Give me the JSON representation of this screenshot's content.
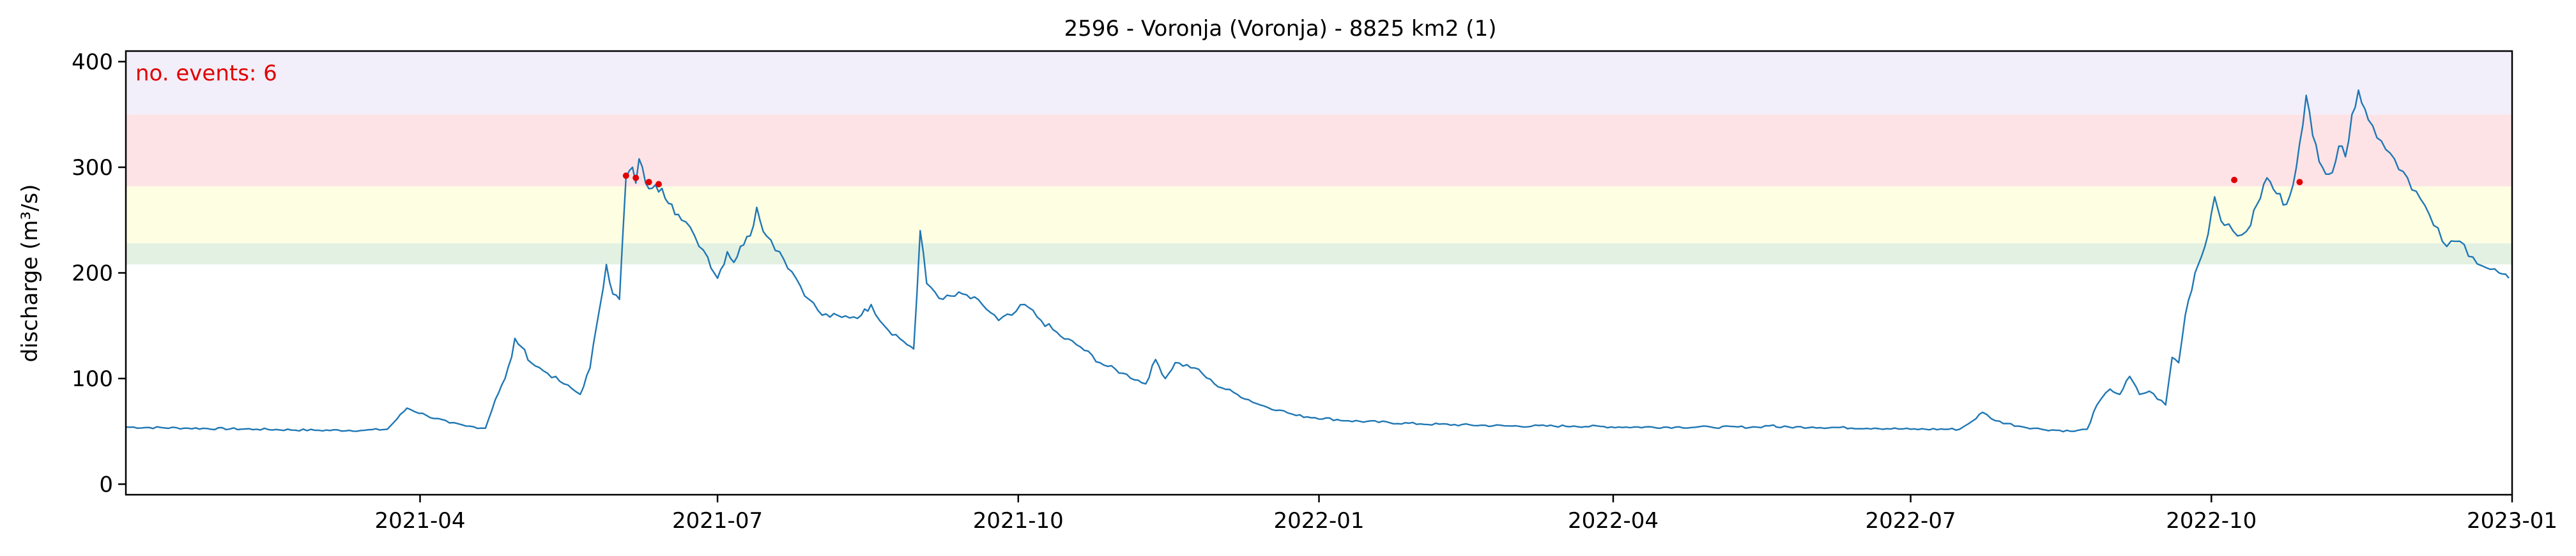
{
  "chart_data": {
    "type": "line",
    "title": "2596 - Voronja (Voronja) - 8825 km2 (1)",
    "xlabel": "",
    "ylabel": "discharge (m³/s)",
    "annotation": "no. events: 6",
    "xlim": [
      "2021-01-01",
      "2023-01-01"
    ],
    "ylim": [
      -10,
      410
    ],
    "yticks": [
      0,
      100,
      200,
      300,
      400
    ],
    "xticks": [
      {
        "date": "2021-04-01",
        "label": "2021-04"
      },
      {
        "date": "2021-07-01",
        "label": "2021-07"
      },
      {
        "date": "2021-10-01",
        "label": "2021-10"
      },
      {
        "date": "2022-01-01",
        "label": "2022-01"
      },
      {
        "date": "2022-04-01",
        "label": "2022-04"
      },
      {
        "date": "2022-07-01",
        "label": "2022-07"
      },
      {
        "date": "2022-10-01",
        "label": "2022-10"
      },
      {
        "date": "2023-01-01",
        "label": "2023-01"
      }
    ],
    "threshold_bands": [
      {
        "name": "band-green",
        "from": 208,
        "to": 228,
        "color": "#e3f1e3"
      },
      {
        "name": "band-yellow",
        "from": 228,
        "to": 282,
        "color": "#fefee2"
      },
      {
        "name": "band-red",
        "from": 282,
        "to": 350,
        "color": "#fee3e6"
      },
      {
        "name": "band-purple",
        "from": 350,
        "to": 410,
        "color": "#f2eefa"
      }
    ],
    "line_color": "#1f77b4",
    "event_color": "#e00000",
    "series": [
      {
        "name": "discharge",
        "points": [
          [
            "2021-01-01",
            54
          ],
          [
            "2021-01-20",
            53
          ],
          [
            "2021-02-10",
            52
          ],
          [
            "2021-03-01",
            51
          ],
          [
            "2021-03-15",
            51
          ],
          [
            "2021-03-22",
            52
          ],
          [
            "2021-03-25",
            62
          ],
          [
            "2021-03-28",
            72
          ],
          [
            "2021-04-03",
            65
          ],
          [
            "2021-04-10",
            58
          ],
          [
            "2021-04-15",
            55
          ],
          [
            "2021-04-21",
            53
          ],
          [
            "2021-04-24",
            80
          ],
          [
            "2021-04-27",
            100
          ],
          [
            "2021-04-29",
            120
          ],
          [
            "2021-04-30",
            138
          ],
          [
            "2021-05-02",
            130
          ],
          [
            "2021-05-05",
            115
          ],
          [
            "2021-05-10",
            105
          ],
          [
            "2021-05-15",
            95
          ],
          [
            "2021-05-20",
            85
          ],
          [
            "2021-05-23",
            110
          ],
          [
            "2021-05-25",
            150
          ],
          [
            "2021-05-28",
            208
          ],
          [
            "2021-05-30",
            180
          ],
          [
            "2021-06-01",
            175
          ],
          [
            "2021-06-03",
            290
          ],
          [
            "2021-06-05",
            300
          ],
          [
            "2021-06-06",
            285
          ],
          [
            "2021-06-07",
            308
          ],
          [
            "2021-06-09",
            285
          ],
          [
            "2021-06-11",
            280
          ],
          [
            "2021-06-14",
            280
          ],
          [
            "2021-06-17",
            265
          ],
          [
            "2021-06-20",
            250
          ],
          [
            "2021-06-24",
            235
          ],
          [
            "2021-06-28",
            215
          ],
          [
            "2021-07-01",
            195
          ],
          [
            "2021-07-04",
            220
          ],
          [
            "2021-07-06",
            210
          ],
          [
            "2021-07-08",
            225
          ],
          [
            "2021-07-11",
            235
          ],
          [
            "2021-07-13",
            262
          ],
          [
            "2021-07-16",
            235
          ],
          [
            "2021-07-20",
            220
          ],
          [
            "2021-07-25",
            195
          ],
          [
            "2021-07-29",
            175
          ],
          [
            "2021-08-02",
            160
          ],
          [
            "2021-08-08",
            158
          ],
          [
            "2021-08-14",
            160
          ],
          [
            "2021-08-17",
            170
          ],
          [
            "2021-08-21",
            150
          ],
          [
            "2021-08-27",
            135
          ],
          [
            "2021-08-30",
            128
          ],
          [
            "2021-08-31",
            180
          ],
          [
            "2021-09-01",
            240
          ],
          [
            "2021-09-03",
            190
          ],
          [
            "2021-09-08",
            175
          ],
          [
            "2021-09-14",
            180
          ],
          [
            "2021-09-20",
            170
          ],
          [
            "2021-09-25",
            155
          ],
          [
            "2021-09-29",
            160
          ],
          [
            "2021-10-03",
            170
          ],
          [
            "2021-10-08",
            155
          ],
          [
            "2021-10-14",
            140
          ],
          [
            "2021-10-20",
            130
          ],
          [
            "2021-10-26",
            115
          ],
          [
            "2021-11-02",
            105
          ],
          [
            "2021-11-09",
            95
          ],
          [
            "2021-11-12",
            118
          ],
          [
            "2021-11-15",
            100
          ],
          [
            "2021-11-18",
            115
          ],
          [
            "2021-11-24",
            110
          ],
          [
            "2021-11-30",
            95
          ],
          [
            "2021-12-07",
            85
          ],
          [
            "2021-12-14",
            75
          ],
          [
            "2021-12-20",
            70
          ],
          [
            "2021-12-25",
            65
          ],
          [
            "2022-01-10",
            60
          ],
          [
            "2022-02-01",
            57
          ],
          [
            "2022-03-01",
            55
          ],
          [
            "2022-03-20",
            55
          ],
          [
            "2022-04-05",
            54
          ],
          [
            "2022-04-20",
            54
          ],
          [
            "2022-05-01",
            54
          ],
          [
            "2022-05-15",
            54
          ],
          [
            "2022-05-20",
            56
          ],
          [
            "2022-05-21",
            54
          ],
          [
            "2022-06-01",
            54
          ],
          [
            "2022-06-20",
            53
          ],
          [
            "2022-07-01",
            52
          ],
          [
            "2022-07-16",
            52
          ],
          [
            "2022-07-20",
            60
          ],
          [
            "2022-07-23",
            68
          ],
          [
            "2022-07-27",
            60
          ],
          [
            "2022-08-03",
            55
          ],
          [
            "2022-08-10",
            52
          ],
          [
            "2022-08-20",
            50
          ],
          [
            "2022-08-24",
            52
          ],
          [
            "2022-08-27",
            75
          ],
          [
            "2022-08-31",
            90
          ],
          [
            "2022-09-03",
            85
          ],
          [
            "2022-09-06",
            102
          ],
          [
            "2022-09-09",
            85
          ],
          [
            "2022-09-12",
            88
          ],
          [
            "2022-09-17",
            75
          ],
          [
            "2022-09-19",
            120
          ],
          [
            "2022-09-21",
            115
          ],
          [
            "2022-09-23",
            160
          ],
          [
            "2022-09-26",
            200
          ],
          [
            "2022-09-29",
            225
          ],
          [
            "2022-10-02",
            272
          ],
          [
            "2022-10-05",
            245
          ],
          [
            "2022-10-09",
            235
          ],
          [
            "2022-10-13",
            245
          ],
          [
            "2022-10-15",
            265
          ],
          [
            "2022-10-18",
            290
          ],
          [
            "2022-10-21",
            275
          ],
          [
            "2022-10-24",
            265
          ],
          [
            "2022-10-27",
            300
          ],
          [
            "2022-10-29",
            340
          ],
          [
            "2022-10-30",
            368
          ],
          [
            "2022-11-01",
            330
          ],
          [
            "2022-11-04",
            300
          ],
          [
            "2022-11-07",
            295
          ],
          [
            "2022-11-09",
            320
          ],
          [
            "2022-11-11",
            310
          ],
          [
            "2022-11-13",
            350
          ],
          [
            "2022-11-15",
            373
          ],
          [
            "2022-11-18",
            345
          ],
          [
            "2022-11-22",
            325
          ],
          [
            "2022-11-26",
            308
          ],
          [
            "2022-11-30",
            290
          ],
          [
            "2022-12-04",
            270
          ],
          [
            "2022-12-08",
            245
          ],
          [
            "2022-12-12",
            225
          ],
          [
            "2022-12-16",
            230
          ],
          [
            "2022-12-20",
            215
          ],
          [
            "2022-12-24",
            205
          ],
          [
            "2022-12-28",
            200
          ],
          [
            "2022-12-31",
            195
          ]
        ]
      }
    ],
    "events": [
      [
        "2021-06-03",
        292
      ],
      [
        "2021-06-06",
        290
      ],
      [
        "2021-06-10",
        286
      ],
      [
        "2021-06-13",
        284
      ],
      [
        "2022-10-08",
        288
      ],
      [
        "2022-10-28",
        286
      ]
    ]
  }
}
